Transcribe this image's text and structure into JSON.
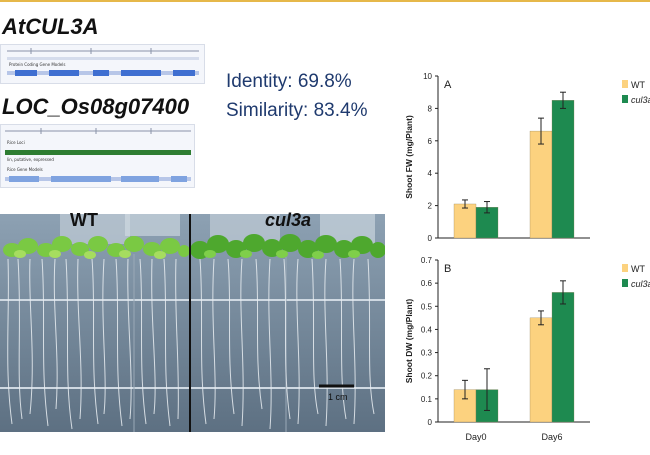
{
  "gene1": {
    "name": "AtCUL3A",
    "browser_ticks": [
      "1",
      ";",
      "1",
      "1",
      "1"
    ],
    "browser_text": "Protein Coding Gene Models"
  },
  "gene2": {
    "name": "LOC_Os08g07400",
    "track1": "Rice Loci",
    "track2": "lin, putative, expressed",
    "track3": "Rice Gene Models"
  },
  "identity": "Identity: 69.8%",
  "similarity": "Similarity: 83.4%",
  "photo": {
    "label_wt": "WT",
    "label_mut": "cul3a",
    "scale_bar": "1 cm"
  },
  "colors": {
    "wt": "#fcd27f",
    "mut": "#1e8a50"
  },
  "chart_data": [
    {
      "type": "bar",
      "panel": "A",
      "categories": [
        "Day0",
        "Day6"
      ],
      "series": [
        {
          "name": "WT",
          "values": [
            2.1,
            6.6
          ],
          "errors": [
            0.25,
            0.8
          ]
        },
        {
          "name": "cul3a",
          "values": [
            1.9,
            8.5
          ],
          "errors": [
            0.35,
            0.5
          ]
        }
      ],
      "ylabel": "Shoot FW (mg/Plant)",
      "ylim": [
        0,
        10
      ],
      "yticks": [
        "0",
        "2",
        "4",
        "6",
        "8",
        "10"
      ],
      "legend": "right"
    },
    {
      "type": "bar",
      "panel": "B",
      "categories": [
        "Day0",
        "Day6"
      ],
      "series": [
        {
          "name": "WT",
          "values": [
            0.14,
            0.45
          ],
          "errors": [
            0.04,
            0.03
          ]
        },
        {
          "name": "cul3a",
          "values": [
            0.14,
            0.56
          ],
          "errors": [
            0.09,
            0.05
          ]
        }
      ],
      "ylabel": "Shoot DW (mg/Plant)",
      "ylim": [
        0,
        0.7
      ],
      "yticks": [
        "0",
        "0.1",
        "0.2",
        "0.3",
        "0.4",
        "0.5",
        "0.6",
        "0.7"
      ],
      "legend": "right"
    }
  ]
}
